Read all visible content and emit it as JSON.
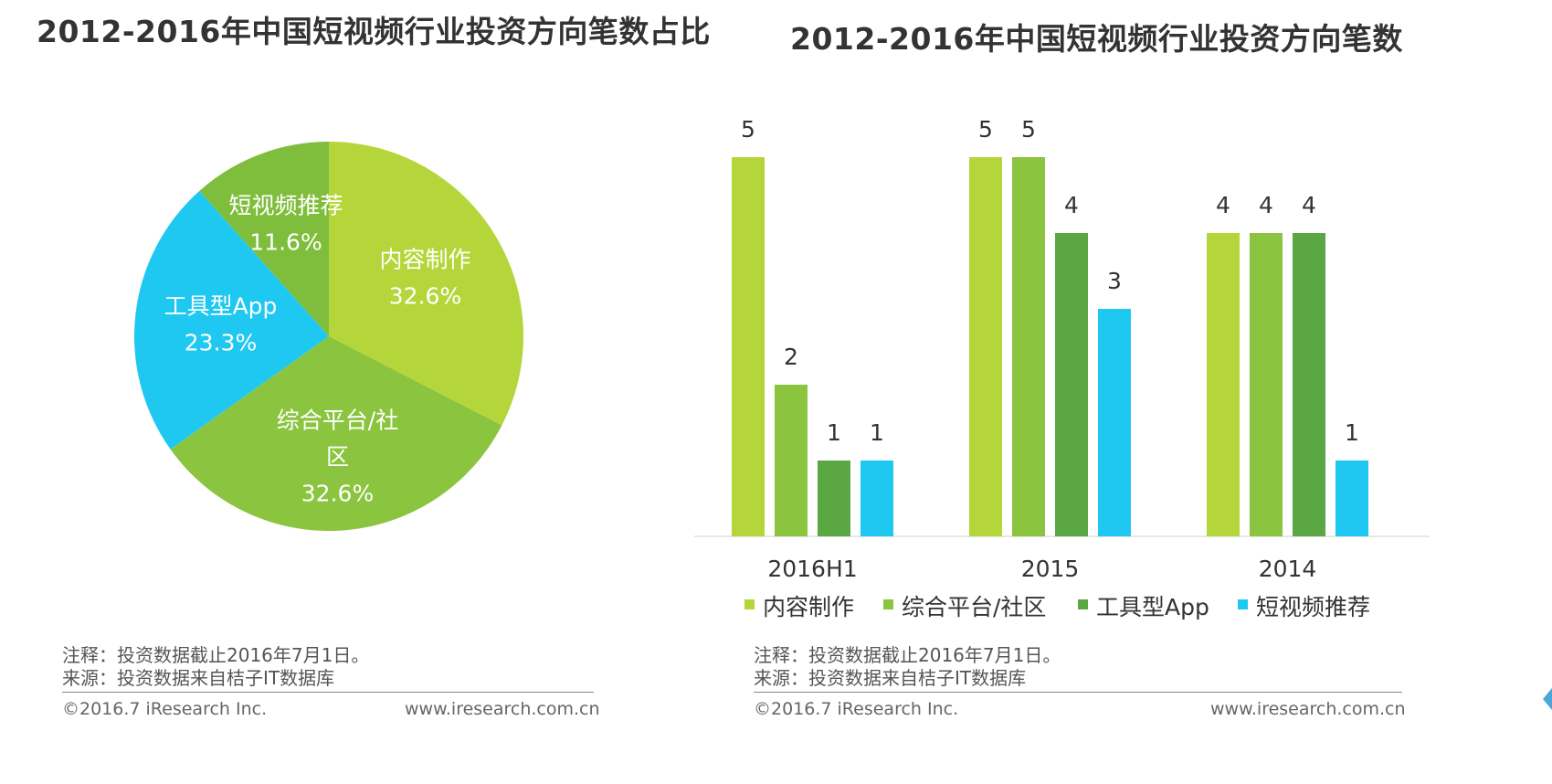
{
  "colors": {
    "content": "#b5d63a",
    "platform": "#8bc43f",
    "tool": "#5aa744",
    "recommend": "#1ec8f0"
  },
  "chart_data": [
    {
      "type": "pie",
      "title": "2012-2016年中国短视频行业投资方向笔数占比",
      "slices": [
        {
          "name": "内容制作",
          "value": 32.6,
          "label": "32.6%",
          "color": "#b5d63a"
        },
        {
          "name": "综合平台/社区",
          "value": 32.6,
          "label": "32.6%",
          "color": "#8bc43f"
        },
        {
          "name": "工具型App",
          "value": 23.3,
          "label": "23.3%",
          "color": "#1ec8f0"
        },
        {
          "name": "短视频推荐",
          "value": 11.6,
          "label": "11.6%",
          "color": "#7fbe3c"
        }
      ]
    },
    {
      "type": "bar",
      "title": "2012-2016年中国短视频行业投资方向笔数",
      "categories": [
        "2016H1",
        "2015",
        "2014"
      ],
      "series": [
        {
          "name": "内容制作",
          "values": [
            5,
            5,
            4
          ],
          "color": "#b5d63a"
        },
        {
          "name": "综合平台/社区",
          "values": [
            2,
            5,
            4
          ],
          "color": "#8bc43f"
        },
        {
          "name": "工具型App",
          "values": [
            1,
            4,
            4
          ],
          "color": "#5aa744"
        },
        {
          "name": "短视频推荐",
          "values": [
            1,
            3,
            1
          ],
          "color": "#1ec8f0"
        }
      ],
      "ylim": [
        0,
        5
      ],
      "legend": "bottom",
      "grid": false
    }
  ],
  "notes": {
    "note": "注释：投资数据截止2016年7月1日。",
    "source": "来源：投资数据来自桔子IT数据库"
  },
  "footer": {
    "copyright": "©2016.7 iResearch Inc.",
    "website": "www.iresearch.com.cn"
  }
}
